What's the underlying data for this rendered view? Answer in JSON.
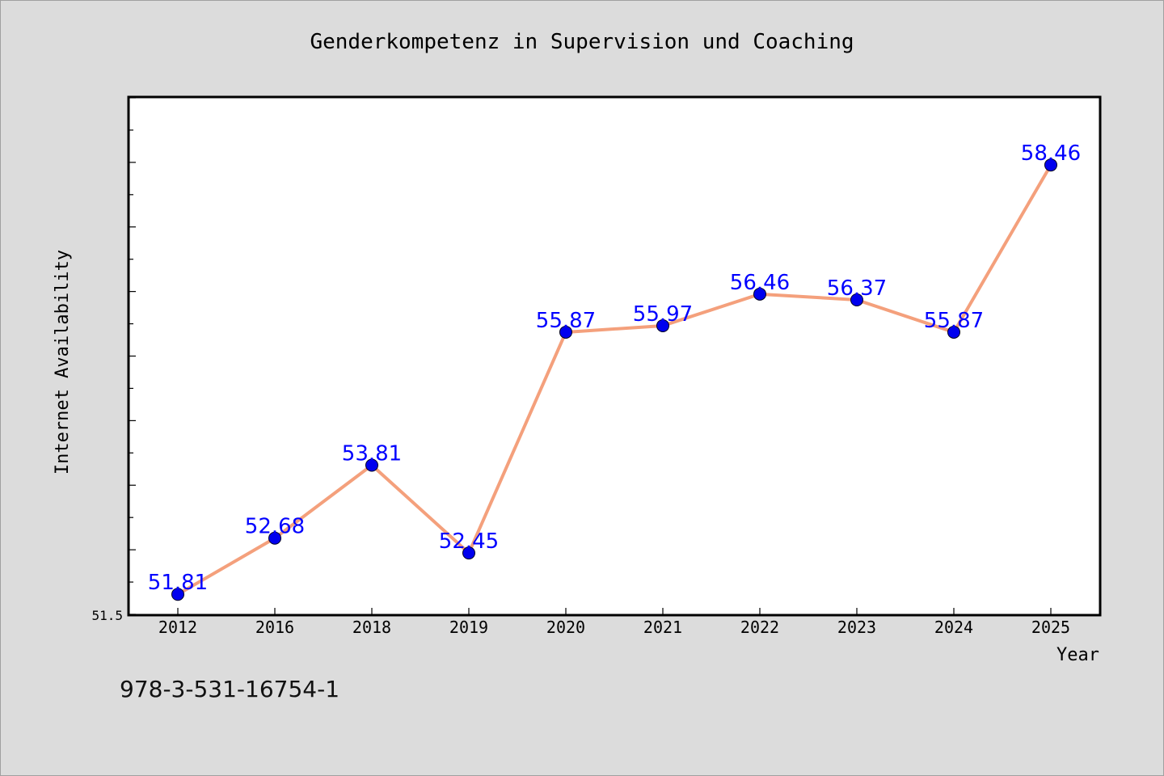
{
  "chart_data": {
    "type": "line",
    "title": "Genderkompetenz in Supervision und Coaching",
    "xlabel": "Year",
    "ylabel": "Internet Availability",
    "categories": [
      "2012",
      "2016",
      "2018",
      "2019",
      "2020",
      "2021",
      "2022",
      "2023",
      "2024",
      "2025"
    ],
    "series": [
      {
        "values": [
          51.81,
          52.68,
          53.81,
          52.45,
          55.87,
          55.97,
          56.46,
          56.37,
          55.87,
          58.46
        ],
        "labels": [
          "51.81",
          "52.68",
          "53.81",
          "52.45",
          "55.87",
          "55.97",
          "56.46",
          "56.37",
          "55.87",
          "58.46"
        ]
      }
    ],
    "ylim": [
      51.5,
      59.5
    ],
    "yticks_labeled": [
      "51.5"
    ],
    "grid": false,
    "line_color": "#f4a07c",
    "marker_color": "#0000ee",
    "label_color": "#0000ff"
  },
  "footer": {
    "isbn": "978-3-531-16754-1"
  }
}
